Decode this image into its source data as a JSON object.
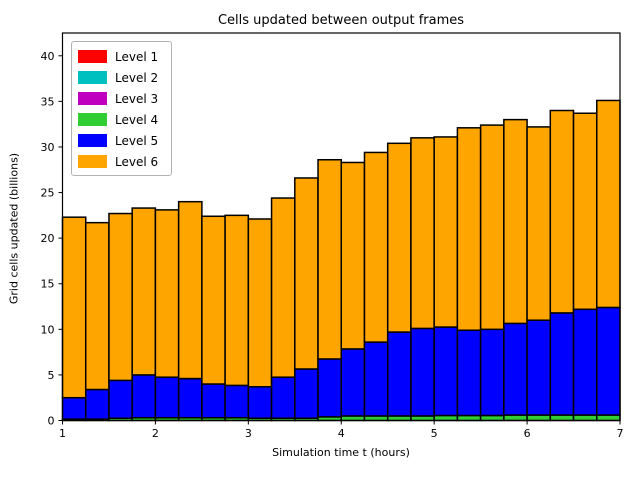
{
  "chart_data": {
    "type": "bar",
    "stacked": true,
    "title": "Cells updated between output frames",
    "xlabel": "Simulation time t (hours)",
    "ylabel": "Grid cells updated (billions)",
    "xlim": [
      1,
      7
    ],
    "ylim": [
      0,
      42.5
    ],
    "xticks": [
      1,
      2,
      3,
      4,
      5,
      6,
      7
    ],
    "yticks": [
      0,
      5,
      10,
      15,
      20,
      25,
      30,
      35,
      40
    ],
    "grid": false,
    "legend_position": "upper left",
    "bar_width": 0.25,
    "bar_edge_color": "#000000",
    "x": [
      1.125,
      1.375,
      1.625,
      1.875,
      2.125,
      2.375,
      2.625,
      2.875,
      3.125,
      3.375,
      3.625,
      3.875,
      4.125,
      4.375,
      4.625,
      4.875,
      5.125,
      5.375,
      5.625,
      5.875,
      6.125,
      6.375,
      6.625,
      6.875
    ],
    "series": [
      {
        "name": "Level 1",
        "color": "#ff0000",
        "values": [
          0,
          0,
          0,
          0,
          0,
          0,
          0,
          0,
          0,
          0,
          0,
          0,
          0,
          0,
          0,
          0,
          0,
          0,
          0,
          0,
          0,
          0,
          0,
          0
        ]
      },
      {
        "name": "Level 2",
        "color": "#00bfbf",
        "values": [
          0,
          0,
          0,
          0,
          0,
          0,
          0,
          0,
          0,
          0,
          0,
          0,
          0,
          0,
          0,
          0,
          0,
          0,
          0,
          0,
          0,
          0,
          0,
          0
        ]
      },
      {
        "name": "Level 3",
        "color": "#bf00bf",
        "values": [
          0,
          0,
          0,
          0,
          0,
          0,
          0,
          0,
          0,
          0,
          0,
          0,
          0,
          0,
          0,
          0,
          0,
          0,
          0,
          0,
          0,
          0,
          0,
          0
        ]
      },
      {
        "name": "Level 4",
        "color": "#32cd32",
        "values": [
          0.15,
          0.15,
          0.25,
          0.3,
          0.3,
          0.3,
          0.3,
          0.3,
          0.25,
          0.25,
          0.25,
          0.4,
          0.5,
          0.5,
          0.5,
          0.5,
          0.55,
          0.55,
          0.55,
          0.6,
          0.6,
          0.6,
          0.6,
          0.6
        ]
      },
      {
        "name": "Level 5",
        "color": "#0000ff",
        "values": [
          2.35,
          3.25,
          4.15,
          4.7,
          4.45,
          4.3,
          3.7,
          3.55,
          3.45,
          4.5,
          5.4,
          6.35,
          7.35,
          8.1,
          9.2,
          9.6,
          9.7,
          9.35,
          9.45,
          10.05,
          10.4,
          11.2,
          11.6,
          11.8
        ]
      },
      {
        "name": "Level 6",
        "color": "#ffa500",
        "values": [
          19.8,
          18.3,
          18.3,
          18.3,
          18.35,
          19.4,
          18.4,
          18.65,
          18.4,
          19.65,
          20.95,
          21.85,
          20.45,
          20.8,
          20.7,
          20.9,
          20.85,
          22.2,
          22.4,
          22.35,
          21.2,
          22.2,
          21.5,
          22.7
        ]
      }
    ],
    "totals": [
      22.3,
      21.7,
      22.7,
      23.3,
      23.1,
      24.0,
      22.4,
      22.5,
      22.1,
      24.4,
      26.6,
      28.6,
      28.3,
      29.4,
      30.4,
      31.0,
      31.1,
      32.1,
      32.4,
      33.0,
      32.2,
      34.0,
      33.7,
      35.1
    ]
  }
}
